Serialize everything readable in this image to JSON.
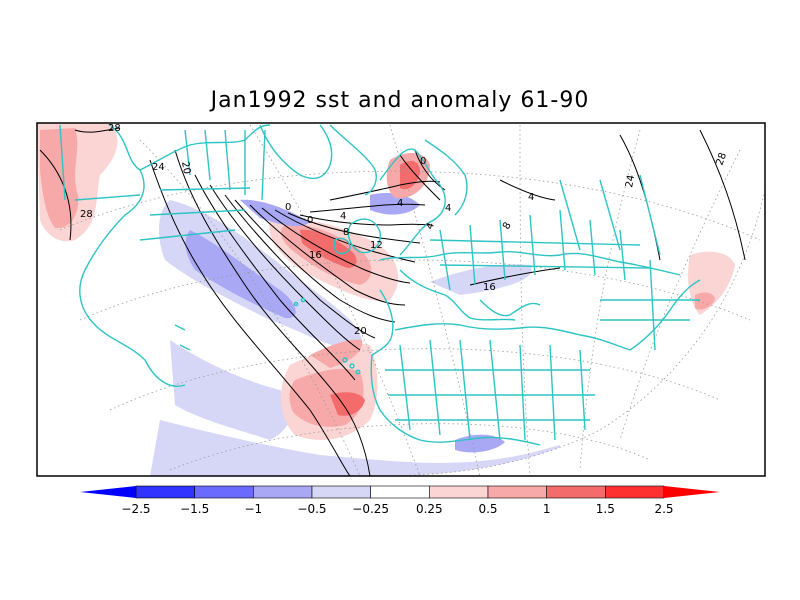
{
  "title": "Jan1992 sst and anomaly 61-90",
  "map": {
    "contour_labels": [
      {
        "id": "c28a",
        "text": "28"
      },
      {
        "id": "c28b",
        "text": "28"
      },
      {
        "id": "c24a",
        "text": "24"
      },
      {
        "id": "c20a",
        "text": "20"
      },
      {
        "id": "c0a",
        "text": "0"
      },
      {
        "id": "c0b",
        "text": "0"
      },
      {
        "id": "c4a",
        "text": "4"
      },
      {
        "id": "c8a",
        "text": "8"
      },
      {
        "id": "c12a",
        "text": "12"
      },
      {
        "id": "c16a",
        "text": "16"
      },
      {
        "id": "c20b",
        "text": "20"
      },
      {
        "id": "c0c",
        "text": "0"
      },
      {
        "id": "c4b",
        "text": "4"
      },
      {
        "id": "c4c",
        "text": "4"
      },
      {
        "id": "c4d",
        "text": "4"
      },
      {
        "id": "c8b",
        "text": "8"
      },
      {
        "id": "c16b",
        "text": "16"
      },
      {
        "id": "c24b",
        "text": "24"
      },
      {
        "id": "c28c",
        "text": "28"
      },
      {
        "id": "c4e",
        "text": "4"
      }
    ],
    "colors": {
      "coast": "#2ec4c4",
      "neg_strong": "#3333ff",
      "neg_mid": "#6a6aff",
      "neg_light": "#a8a8f5",
      "neg_faint": "#d6d6f7",
      "pos_faint": "#fbd4d4",
      "pos_light": "#f7a8a8",
      "pos_mid": "#f36b6b",
      "pos_strong": "#ff3030"
    }
  },
  "colorbar": {
    "tick_labels": [
      "-2.5",
      "-1.5",
      "-1",
      "-0.5",
      "-0.25",
      "0.25",
      "0.5",
      "1",
      "1.5",
      "2.5"
    ],
    "colors": [
      "#0000ff",
      "#3333ff",
      "#6a6aff",
      "#a8a8f5",
      "#d6d6f7",
      "#ffffff",
      "#fbd4d4",
      "#f7a8a8",
      "#f36b6b",
      "#ff3030",
      "#ff0000"
    ]
  }
}
